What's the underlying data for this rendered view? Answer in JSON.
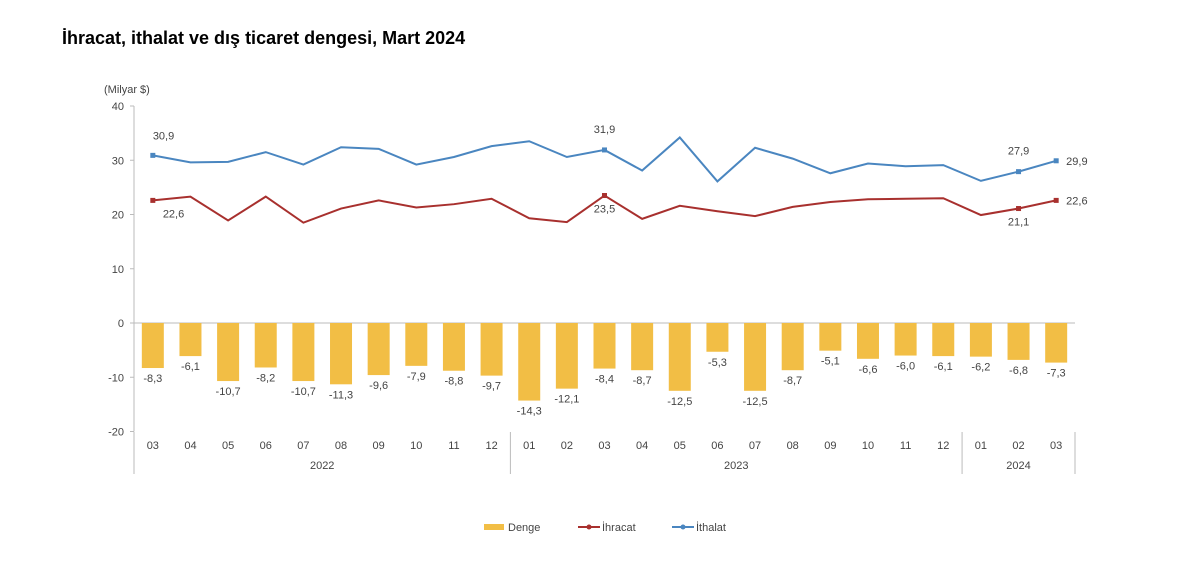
{
  "chart_data": {
    "type": "bar+line",
    "title": "İhracat, ithalat ve dış ticaret dengesi, Mart 2024",
    "ylabel": "(Milyar $)",
    "ylim": [
      -20,
      40
    ],
    "yticks": [
      40,
      30,
      20,
      10,
      0,
      -10,
      -20
    ],
    "categories": [
      "03",
      "04",
      "05",
      "06",
      "07",
      "08",
      "09",
      "10",
      "11",
      "12",
      "01",
      "02",
      "03",
      "04",
      "05",
      "06",
      "07",
      "08",
      "09",
      "10",
      "11",
      "12",
      "01",
      "02",
      "03"
    ],
    "years": [
      {
        "label": "2022",
        "start": 0,
        "end": 9
      },
      {
        "label": "2023",
        "start": 10,
        "end": 21
      },
      {
        "label": "2024",
        "start": 22,
        "end": 24
      }
    ],
    "legend_position": "bottom",
    "series": [
      {
        "name": "Denge",
        "type": "bar",
        "color": "#F2BE45",
        "values": [
          -8.3,
          -6.1,
          -10.7,
          -8.2,
          -10.7,
          -11.3,
          -9.6,
          -7.9,
          -8.8,
          -9.7,
          -14.3,
          -12.1,
          -8.4,
          -8.7,
          -12.5,
          -5.3,
          -12.5,
          -8.7,
          -5.1,
          -6.6,
          -6.0,
          -6.1,
          -6.2,
          -6.8,
          -7.3
        ],
        "labels": [
          "-8,3",
          "-6,1",
          "-10,7",
          "-8,2",
          "-10,7",
          "-11,3",
          "-9,6",
          "-7,9",
          "-8,8",
          "-9,7",
          "-14,3",
          "-12,1",
          "-8,4",
          "-8,7",
          "-12,5",
          "-5,3",
          "-12,5",
          "-8,7",
          "-5,1",
          "-6,6",
          "-6,0",
          "-6,1",
          "-6,2",
          "-6,8",
          "-7,3"
        ]
      },
      {
        "name": "İhracat",
        "type": "line",
        "color": "#A8302E",
        "values": [
          22.6,
          23.3,
          18.9,
          23.3,
          18.5,
          21.1,
          22.6,
          21.3,
          21.9,
          22.9,
          19.3,
          18.6,
          23.5,
          19.2,
          21.6,
          20.6,
          19.7,
          21.4,
          22.3,
          22.8,
          22.9,
          23.0,
          19.9,
          21.1,
          22.6
        ],
        "point_labels": {
          "0": "22,6",
          "12": "23,5",
          "23": "21,1",
          "24": "22,6"
        }
      },
      {
        "name": "İthalat",
        "type": "line",
        "color": "#4A86C0",
        "values": [
          30.9,
          29.6,
          29.7,
          31.5,
          29.2,
          32.4,
          32.1,
          29.2,
          30.6,
          32.6,
          33.5,
          30.6,
          31.9,
          28.1,
          34.2,
          26.1,
          32.3,
          30.3,
          27.6,
          29.4,
          28.9,
          29.1,
          26.2,
          27.9,
          29.9
        ],
        "point_labels": {
          "0": "30,9",
          "12": "31,9",
          "23": "27,9",
          "24": "29,9"
        }
      }
    ]
  }
}
